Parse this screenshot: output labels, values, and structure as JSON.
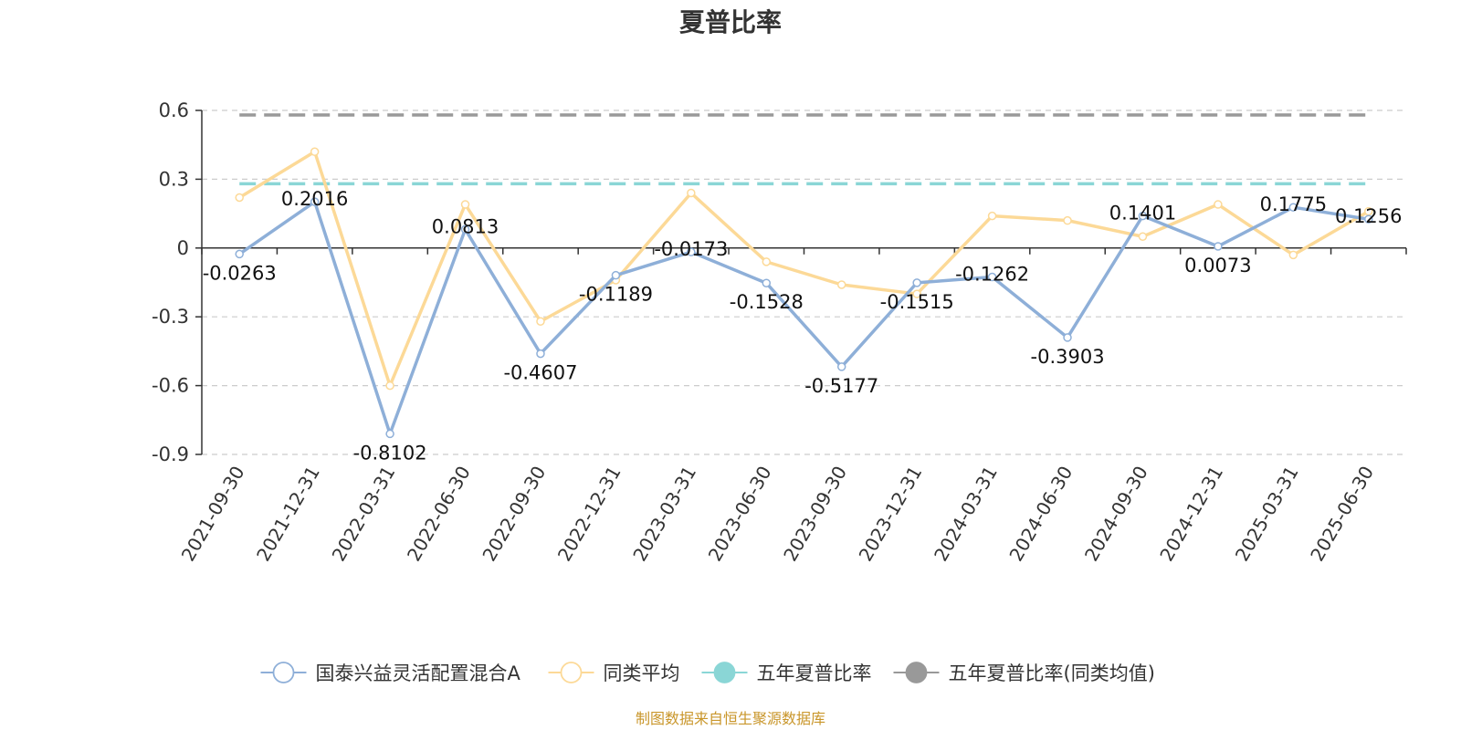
{
  "chart_data": {
    "type": "line",
    "title": "夏普比率",
    "categories": [
      "2021-09-30",
      "2021-12-31",
      "2022-03-31",
      "2022-06-30",
      "2022-09-30",
      "2022-12-31",
      "2023-03-31",
      "2023-06-30",
      "2023-09-30",
      "2023-12-31",
      "2024-03-31",
      "2024-06-30",
      "2024-09-30",
      "2024-12-31",
      "2025-03-31",
      "2025-06-30"
    ],
    "ylim": [
      -0.9,
      0.6
    ],
    "yticks": [
      0.6,
      0.3,
      0,
      -0.3,
      -0.6,
      -0.9
    ],
    "ytick_labels": [
      "0.6",
      "0.3",
      "0",
      "-0.3",
      "-0.6",
      "-0.9"
    ],
    "grid": true,
    "legend_position": "bottom",
    "series": [
      {
        "name": "国泰兴益灵活配置混合A",
        "color": "#8eafd8",
        "values": [
          -0.0263,
          0.2016,
          -0.8102,
          0.0813,
          -0.4607,
          -0.1189,
          -0.0173,
          -0.1528,
          -0.5177,
          -0.1515,
          -0.1262,
          -0.3903,
          0.1401,
          0.0073,
          0.1775,
          0.1256
        ],
        "labels": [
          "-0.0263",
          "0.2016",
          "-0.8102",
          "0.0813",
          "-0.4607",
          "-0.1189",
          "-0.0173",
          "-0.1528",
          "-0.5177",
          "-0.1515",
          "-0.1262",
          "-0.3903",
          "0.1401",
          "0.0073",
          "0.1775",
          "0.1256"
        ]
      },
      {
        "name": "同类平均",
        "color": "#fcd997",
        "values": [
          0.22,
          0.42,
          -0.6,
          0.19,
          -0.32,
          -0.14,
          0.24,
          -0.06,
          -0.16,
          -0.2,
          0.14,
          0.12,
          0.05,
          0.19,
          -0.03,
          0.16
        ]
      }
    ],
    "reference_lines": [
      {
        "name": "五年夏普比率",
        "color": "#8ad6d6",
        "value": 0.28
      },
      {
        "name": "五年夏普比率(同类均值)",
        "color": "#999999",
        "value": 0.58
      }
    ]
  },
  "source_text": "制图数据来自恒生聚源数据库"
}
